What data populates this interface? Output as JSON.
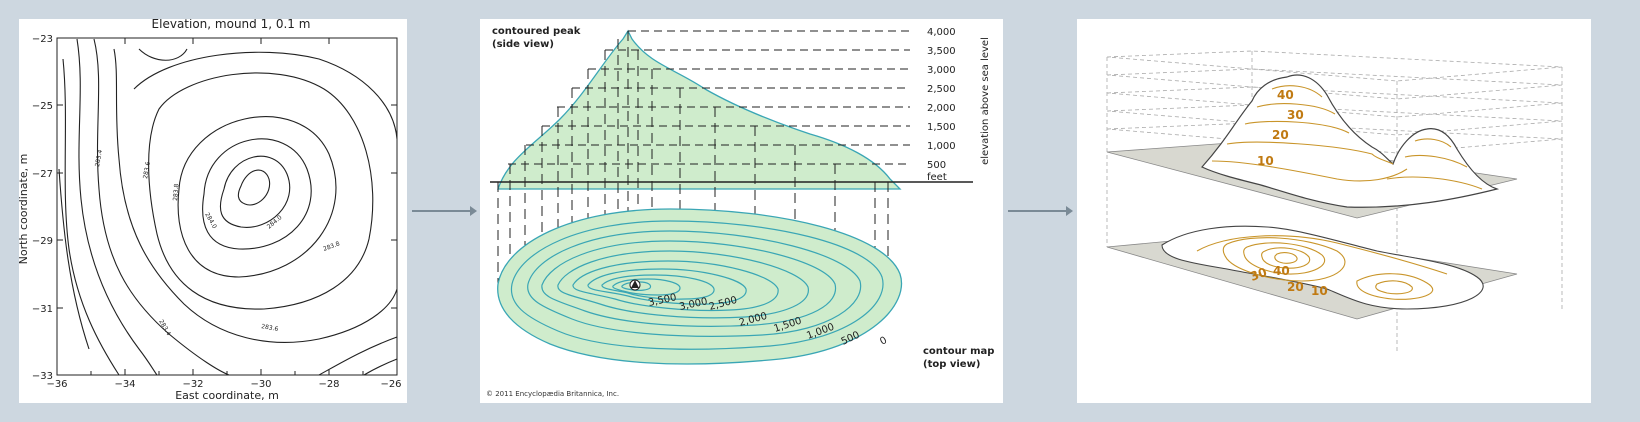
{
  "colors": {
    "background": "#cdd7e0",
    "panel": "#ffffff",
    "contour_fill": "#cfeccc",
    "contour_line": "#3aa6b5",
    "terrain_line": "#c9952a",
    "terrain_label": "#c07a12",
    "plane": "#d8d8d0"
  },
  "panel1": {
    "title": "Elevation, mound 1, 0.1 m",
    "xlabel": "East coordinate, m",
    "ylabel": "North coordinate, m",
    "x_ticks": [
      "−36",
      "−34",
      "−32",
      "−30",
      "−28",
      "−26"
    ],
    "y_ticks": [
      "−23",
      "−25",
      "−27",
      "−29",
      "−31",
      "−33"
    ],
    "contour_labels": [
      "283.4",
      "283.6",
      "283.8",
      "284.0",
      "284.0",
      "283.8",
      "283.4",
      "283.6"
    ]
  },
  "panel2": {
    "side_title_1": "contoured peak",
    "side_title_2": "(side view)",
    "top_title_1": "contour map",
    "top_title_2": "(top view)",
    "elevation_axis_label": "elevation above sea level",
    "elevations": [
      "4,000",
      "3,500",
      "3,000",
      "2,500",
      "2,000",
      "1,500",
      "1,000",
      "500",
      "feet"
    ],
    "map_labels": [
      "3,500",
      "3,000",
      "2,500",
      "2,000",
      "1,500",
      "1,000",
      "500",
      "0"
    ],
    "copyright": "© 2011 Encyclopædia Britannica, Inc."
  },
  "panel3": {
    "terrain_labels": [
      "40",
      "30",
      "20",
      "10"
    ],
    "map_labels": [
      "40",
      "30",
      "20",
      "10"
    ]
  }
}
